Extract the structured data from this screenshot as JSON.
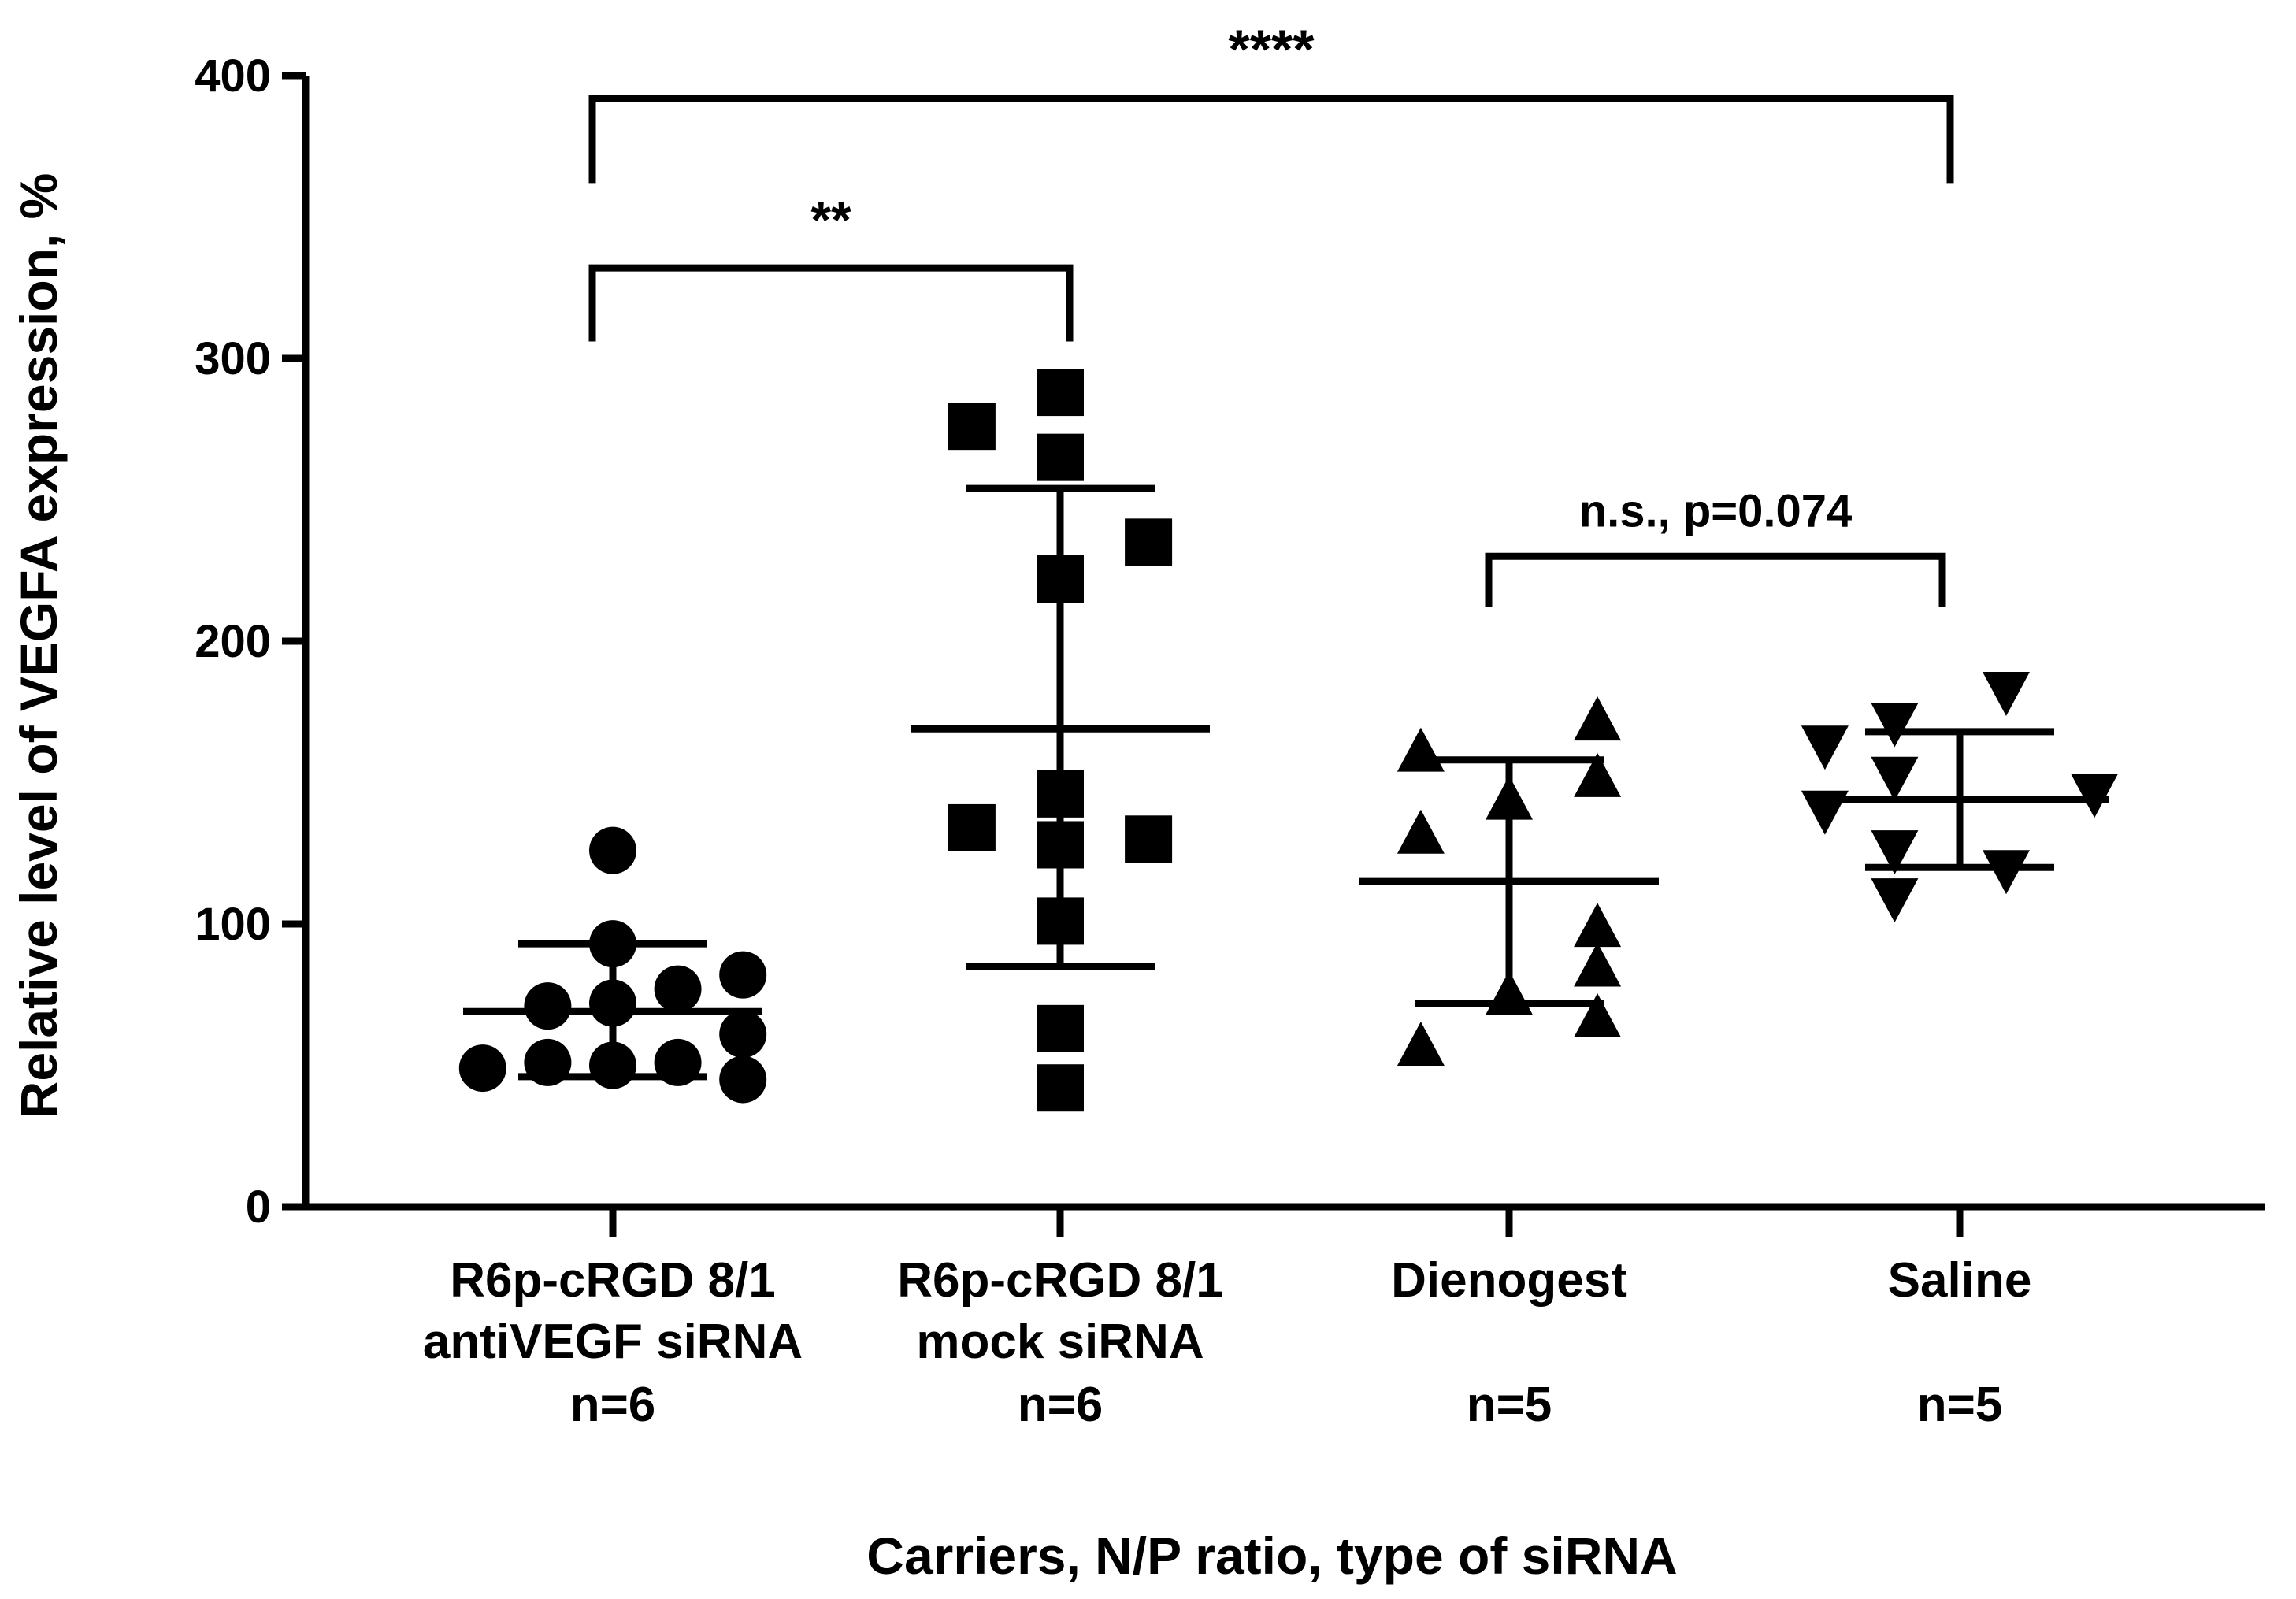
{
  "chart_data": {
    "type": "scatter",
    "title": "",
    "xlabel": "Carriers, N/P ratio, type of siRNA",
    "ylabel": "Relative level of VEGFA expression, %",
    "ylim": [
      0,
      400
    ],
    "yticks": [
      0,
      100,
      200,
      300,
      400
    ],
    "grid": false,
    "categories": [
      {
        "lines": [
          "R6p-cRGD 8/1",
          "antiVEGF siRNA",
          "n=6"
        ],
        "marker": "circle",
        "points": [
          {
            "x": -0.28,
            "y": 49
          },
          {
            "x": -0.14,
            "y": 71
          },
          {
            "x": -0.14,
            "y": 51
          },
          {
            "x": 0.0,
            "y": 126
          },
          {
            "x": 0.0,
            "y": 93
          },
          {
            "x": 0.0,
            "y": 72
          },
          {
            "x": 0.0,
            "y": 50
          },
          {
            "x": 0.14,
            "y": 77
          },
          {
            "x": 0.14,
            "y": 51
          },
          {
            "x": 0.28,
            "y": 82
          },
          {
            "x": 0.28,
            "y": 61
          },
          {
            "x": 0.28,
            "y": 45
          }
        ],
        "mean": 69,
        "sd_low": 46,
        "sd_high": 93
      },
      {
        "lines": [
          "R6p-cRGD 8/1",
          "mock siRNA",
          "n=6"
        ],
        "marker": "square",
        "points": [
          {
            "x": -0.19,
            "y": 276
          },
          {
            "x": -0.19,
            "y": 134
          },
          {
            "x": 0.0,
            "y": 288
          },
          {
            "x": 0.0,
            "y": 265
          },
          {
            "x": 0.0,
            "y": 222
          },
          {
            "x": 0.0,
            "y": 146
          },
          {
            "x": 0.0,
            "y": 128
          },
          {
            "x": 0.0,
            "y": 101
          },
          {
            "x": 0.0,
            "y": 63
          },
          {
            "x": 0.0,
            "y": 42
          },
          {
            "x": 0.19,
            "y": 235
          },
          {
            "x": 0.19,
            "y": 130
          }
        ],
        "mean": 169,
        "sd_low": 85,
        "sd_high": 254
      },
      {
        "lines": [
          "Dienogest",
          "",
          "n=5"
        ],
        "marker": "triangle-up",
        "points": [
          {
            "x": -0.19,
            "y": 160
          },
          {
            "x": -0.19,
            "y": 131
          },
          {
            "x": -0.19,
            "y": 56
          },
          {
            "x": 0.0,
            "y": 143
          },
          {
            "x": 0.0,
            "y": 74
          },
          {
            "x": 0.19,
            "y": 171
          },
          {
            "x": 0.19,
            "y": 151
          },
          {
            "x": 0.19,
            "y": 98
          },
          {
            "x": 0.19,
            "y": 84
          },
          {
            "x": 0.19,
            "y": 66
          }
        ],
        "mean": 115,
        "sd_low": 72,
        "sd_high": 158
      },
      {
        "lines": [
          "Saline",
          "",
          "n=5"
        ],
        "marker": "triangle-down",
        "points": [
          {
            "x": -0.29,
            "y": 164
          },
          {
            "x": -0.29,
            "y": 141
          },
          {
            "x": -0.14,
            "y": 172
          },
          {
            "x": -0.14,
            "y": 153
          },
          {
            "x": -0.14,
            "y": 127
          },
          {
            "x": -0.14,
            "y": 110
          },
          {
            "x": 0.1,
            "y": 183
          },
          {
            "x": 0.1,
            "y": 120
          },
          {
            "x": 0.29,
            "y": 147
          }
        ],
        "mean": 144,
        "sd_low": 120,
        "sd_high": 168
      }
    ],
    "annotations": [
      {
        "from": 0,
        "to": 3,
        "y": 392,
        "drop": 30,
        "text": "****"
      },
      {
        "from": 0,
        "to": 1,
        "y": 332,
        "drop": 26,
        "text": "**"
      },
      {
        "from": 2,
        "to": 3,
        "y": 230,
        "drop": 18,
        "text": "n.s., p=0.074"
      }
    ]
  }
}
